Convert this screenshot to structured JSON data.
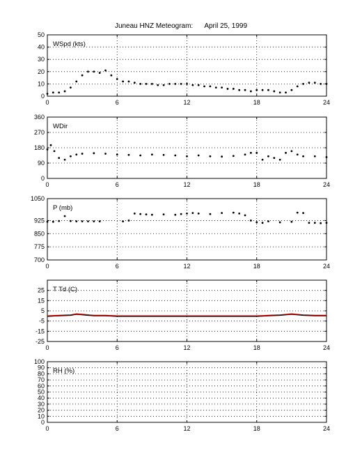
{
  "title": "Juneau HNZ Meteogram:      April 25, 1999",
  "chart_data": [
    {
      "type": "scatter",
      "label": "WSpd (kts)",
      "xlim": [
        0,
        24
      ],
      "xticks": [
        0,
        6,
        12,
        18,
        24
      ],
      "ylim": [
        0,
        50
      ],
      "yticks": [
        0,
        10,
        20,
        30,
        40,
        50
      ],
      "grid": true,
      "series": [
        {
          "color": "#000000",
          "x": [
            0,
            0.5,
            1,
            1.5,
            2,
            2.5,
            3,
            3.5,
            4,
            4.5,
            5,
            5.5,
            6,
            6.5,
            7,
            7.5,
            8,
            8.5,
            9,
            9.5,
            10,
            10.5,
            11,
            11.5,
            12,
            12.5,
            13,
            13.5,
            14,
            14.5,
            15,
            15.5,
            16,
            16.5,
            17,
            17.5,
            18,
            18.5,
            19,
            19.5,
            20,
            20.5,
            21,
            21.5,
            22,
            22.5,
            23,
            23.5,
            24
          ],
          "y": [
            2,
            3,
            3,
            4,
            7,
            12,
            17,
            20,
            20,
            19,
            21,
            17,
            14,
            12,
            12,
            11,
            10,
            10,
            10,
            9,
            9,
            10,
            10,
            10,
            10,
            9,
            9,
            8,
            8,
            7,
            7,
            6,
            6,
            5,
            5,
            4,
            5,
            5,
            5,
            4,
            3,
            3,
            5,
            8,
            10,
            11,
            11,
            10,
            10
          ]
        }
      ]
    },
    {
      "type": "scatter",
      "label": "WDir",
      "xlim": [
        0,
        24
      ],
      "xticks": [
        0,
        6,
        12,
        18,
        24
      ],
      "ylim": [
        0,
        360
      ],
      "yticks": [
        0,
        90,
        180,
        270,
        360
      ],
      "grid": true,
      "series": [
        {
          "color": "#000000",
          "x": [
            0,
            0.3,
            0.6,
            1,
            1.5,
            2,
            2.5,
            3,
            4,
            5,
            6,
            7,
            8,
            9,
            10,
            11,
            12,
            13,
            14,
            15,
            16,
            17,
            17.5,
            18,
            18.5,
            19,
            19.5,
            20,
            20.5,
            21,
            21.5,
            22,
            23,
            24
          ],
          "y": [
            170,
            195,
            160,
            120,
            110,
            130,
            140,
            145,
            148,
            145,
            140,
            138,
            135,
            140,
            138,
            135,
            130,
            135,
            130,
            128,
            132,
            140,
            150,
            150,
            110,
            130,
            120,
            110,
            150,
            160,
            140,
            130,
            130,
            125
          ]
        }
      ]
    },
    {
      "type": "scatter",
      "label": "P (mb)",
      "xlim": [
        0,
        24
      ],
      "xticks": [
        0,
        6,
        12,
        18,
        24
      ],
      "ylim": [
        700,
        1050
      ],
      "yticks": [
        700,
        775,
        850,
        925,
        1050
      ],
      "grid": true,
      "series": [
        {
          "color": "#000000",
          "x": [
            0,
            0.5,
            1,
            1.5,
            2,
            2.5,
            3,
            3.5,
            4,
            4.5,
            6.5,
            7,
            7.5,
            8,
            8.5,
            9,
            10,
            11,
            11.5,
            12,
            12.5,
            13,
            14,
            15,
            16,
            16.5,
            17,
            17.5,
            18,
            18.5,
            19,
            20,
            21,
            21.5,
            22,
            22.5,
            23,
            23.5,
            24
          ],
          "y": [
            918,
            918,
            922,
            950,
            922,
            920,
            920,
            920,
            920,
            920,
            920,
            925,
            965,
            962,
            960,
            958,
            960,
            958,
            962,
            965,
            968,
            965,
            962,
            968,
            970,
            965,
            955,
            925,
            915,
            912,
            920,
            915,
            918,
            970,
            968,
            912,
            912,
            910,
            912
          ]
        }
      ]
    },
    {
      "type": "line",
      "label": "T Td (C)",
      "xlim": [
        0,
        24
      ],
      "xticks": [
        0,
        6,
        12,
        18,
        24
      ],
      "ylim": [
        -25,
        35
      ],
      "yticks": [
        -25,
        -15,
        -5,
        5,
        15,
        25
      ],
      "grid": true,
      "series": [
        {
          "color": "#cc0000",
          "x": [
            0,
            1,
            2,
            2.5,
            3,
            4,
            5,
            6,
            8,
            10,
            12,
            14,
            16,
            18,
            19,
            20,
            21,
            22,
            23,
            24
          ],
          "y": [
            0,
            0.5,
            1,
            2,
            1.5,
            0.5,
            0.5,
            0,
            0,
            0,
            0,
            0,
            0,
            0,
            0.5,
            1,
            2,
            1,
            0.5,
            0.5
          ]
        },
        {
          "color": "#000000",
          "x": [
            0,
            1,
            2,
            2.5,
            3,
            4,
            5,
            6,
            8,
            10,
            12,
            14,
            16,
            18,
            19,
            20,
            21,
            22,
            23,
            24
          ],
          "y": [
            -0.5,
            0,
            0.5,
            1.5,
            1,
            0,
            0,
            -0.5,
            -0.5,
            -0.5,
            -0.5,
            -0.5,
            -0.5,
            -0.5,
            0,
            0.5,
            1.5,
            0.5,
            0,
            0
          ]
        }
      ]
    },
    {
      "type": "line",
      "label": "RH (%)",
      "xlim": [
        0,
        24
      ],
      "xticks": [
        0,
        6,
        12,
        18,
        24
      ],
      "ylim": [
        0,
        100
      ],
      "yticks": [
        0,
        10,
        20,
        30,
        40,
        50,
        60,
        70,
        80,
        90,
        100
      ],
      "grid": true,
      "series": []
    }
  ]
}
